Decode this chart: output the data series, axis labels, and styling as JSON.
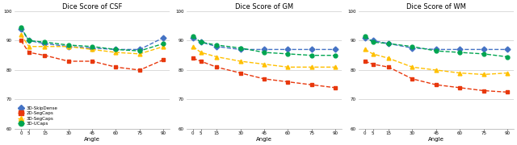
{
  "x": [
    0,
    5,
    15,
    30,
    45,
    60,
    75,
    90
  ],
  "titles": [
    "Dice Score of CSF",
    "Dice Score of GM",
    "Dice Score of WM"
  ],
  "xlabel": "Angle",
  "ylim": [
    60,
    100
  ],
  "yticks": [
    60,
    70,
    80,
    90,
    100
  ],
  "series": {
    "3D-SkipDense": {
      "color": "#4472C4",
      "marker": "D",
      "linestyle": "--",
      "CSF": [
        94.0,
        90.0,
        89.0,
        88.0,
        87.5,
        87.0,
        87.0,
        91.0
      ],
      "GM": [
        91.0,
        89.5,
        88.0,
        87.0,
        87.0,
        87.0,
        87.0,
        87.0
      ],
      "WM": [
        91.0,
        90.0,
        89.0,
        87.5,
        87.0,
        87.0,
        87.0,
        87.0
      ]
    },
    "2D-SegCaps": {
      "color": "#E8380D",
      "marker": "s",
      "linestyle": "--",
      "CSF": [
        90.0,
        86.0,
        85.0,
        83.0,
        83.0,
        81.0,
        80.0,
        83.5
      ],
      "GM": [
        84.0,
        83.0,
        81.0,
        79.0,
        77.0,
        76.0,
        75.0,
        74.0
      ],
      "WM": [
        83.0,
        82.0,
        81.0,
        77.0,
        75.0,
        74.0,
        73.0,
        72.5
      ]
    },
    "3D-SegCaps": {
      "color": "#FFC000",
      "marker": "^",
      "linestyle": "--",
      "CSF": [
        92.0,
        88.0,
        88.0,
        88.0,
        87.0,
        86.0,
        85.5,
        88.0
      ],
      "GM": [
        88.0,
        86.0,
        84.5,
        83.0,
        82.0,
        81.0,
        81.0,
        81.0
      ],
      "WM": [
        87.0,
        85.5,
        84.0,
        81.0,
        80.0,
        79.0,
        78.5,
        79.0
      ]
    },
    "3D-UCaps": {
      "color": "#00A550",
      "marker": "o",
      "linestyle": "--",
      "CSF": [
        94.5,
        90.0,
        89.5,
        88.5,
        88.0,
        87.0,
        86.5,
        89.0
      ],
      "GM": [
        91.5,
        89.5,
        88.5,
        87.5,
        86.0,
        85.5,
        85.0,
        85.0
      ],
      "WM": [
        91.5,
        89.5,
        89.0,
        88.0,
        86.5,
        86.0,
        85.5,
        84.5
      ]
    }
  },
  "legend_order": [
    "3D-SkipDense",
    "2D-SegCaps",
    "3D-SegCaps",
    "3D-UCaps"
  ],
  "chart_keys": [
    "CSF",
    "GM",
    "WM"
  ],
  "background_color": "#ffffff",
  "grid_color": "#cccccc"
}
